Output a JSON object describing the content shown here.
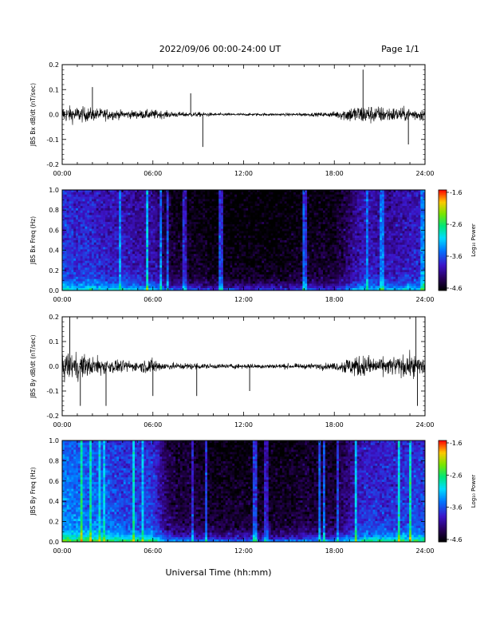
{
  "header": {
    "date_range": "2022/09/06  00:00-24:00 UT",
    "page_label": "Page 1/1"
  },
  "xlabel": "Universal Time (hh:mm)",
  "time_ticks": [
    "00:00",
    "06:00",
    "12:00",
    "18:00",
    "24:00"
  ],
  "chart_data": [
    {
      "type": "line",
      "panel": "bx_waveform",
      "ylabel": "JBS Bx dB/dt (nT/sec)",
      "xlim": [
        0,
        24
      ],
      "ylim": [
        -0.2,
        0.2
      ],
      "y_ticks": [
        "0.2",
        "0.1",
        "0.0",
        "-0.1",
        "-0.2"
      ],
      "activity_envelope": {
        "hours": [
          0,
          1,
          2,
          3,
          4,
          5,
          6,
          7,
          8,
          9,
          10,
          11,
          12,
          13,
          14,
          15,
          16,
          17,
          18,
          19,
          20,
          21,
          22,
          23,
          24
        ],
        "amplitude": [
          0.05,
          0.05,
          0.04,
          0.035,
          0.025,
          0.025,
          0.03,
          0.02,
          0.015,
          0.015,
          0.01,
          0.008,
          0.008,
          0.008,
          0.008,
          0.009,
          0.01,
          0.012,
          0.018,
          0.05,
          0.06,
          0.05,
          0.045,
          0.04,
          0.04
        ]
      },
      "spikes": [
        {
          "hour": 2.0,
          "value": 0.11
        },
        {
          "hour": 8.5,
          "value": 0.085
        },
        {
          "hour": 9.3,
          "value": -0.13
        },
        {
          "hour": 19.9,
          "value": 0.18
        },
        {
          "hour": 22.9,
          "value": -0.12
        }
      ]
    },
    {
      "type": "heatmap",
      "panel": "bx_spectrogram",
      "ylabel": "JBS Bx Freq (Hz)",
      "xlim": [
        0,
        24
      ],
      "ylim": [
        0.0,
        1.0
      ],
      "y_ticks": [
        "1.0",
        "0.8",
        "0.6",
        "0.4",
        "0.2",
        "0.0"
      ],
      "colorbar": {
        "label": "Log₁₀ Power",
        "ticks": [
          "-1.6",
          "-2.6",
          "-3.6",
          "-4.6"
        ],
        "range": [
          -4.6,
          -1.6
        ]
      },
      "hourly_mean_power": [
        -3.6,
        -3.7,
        -3.7,
        -3.8,
        -3.8,
        -3.9,
        -3.9,
        -4.3,
        -4.4,
        -4.4,
        -4.5,
        -4.5,
        -4.5,
        -4.5,
        -4.5,
        -4.5,
        -4.4,
        -4.4,
        -4.4,
        -4.1,
        -3.8,
        -3.9,
        -3.9,
        -3.8,
        -3.8
      ],
      "low_freq_enhancement": 0.9
    },
    {
      "type": "line",
      "panel": "by_waveform",
      "ylabel": "JBS By dB/dt (nT/sec)",
      "xlim": [
        0,
        24
      ],
      "ylim": [
        -0.2,
        0.2
      ],
      "y_ticks": [
        "0.2",
        "0.1",
        "0.0",
        "-0.1",
        "-0.2"
      ],
      "activity_envelope": {
        "hours": [
          0,
          1,
          2,
          3,
          4,
          5,
          6,
          7,
          8,
          9,
          10,
          11,
          12,
          13,
          14,
          15,
          16,
          17,
          18,
          19,
          20,
          21,
          22,
          23,
          24
        ],
        "amplitude": [
          0.09,
          0.08,
          0.06,
          0.05,
          0.035,
          0.03,
          0.05,
          0.02,
          0.02,
          0.02,
          0.015,
          0.015,
          0.015,
          0.015,
          0.015,
          0.015,
          0.015,
          0.02,
          0.02,
          0.06,
          0.07,
          0.05,
          0.06,
          0.07,
          0.06
        ]
      },
      "spikes": [
        {
          "hour": 0.5,
          "value": 0.2
        },
        {
          "hour": 1.2,
          "value": -0.16
        },
        {
          "hour": 2.9,
          "value": -0.16
        },
        {
          "hour": 6.0,
          "value": -0.12
        },
        {
          "hour": 8.9,
          "value": -0.12
        },
        {
          "hour": 12.4,
          "value": -0.1
        },
        {
          "hour": 23.4,
          "value": 0.2
        },
        {
          "hour": 23.5,
          "value": -0.16
        }
      ]
    },
    {
      "type": "heatmap",
      "panel": "by_spectrogram",
      "ylabel": "JBS By Freq (Hz)",
      "xlim": [
        0,
        24
      ],
      "ylim": [
        0.0,
        1.0
      ],
      "y_ticks": [
        "1.0",
        "0.8",
        "0.6",
        "0.4",
        "0.2",
        "0.0"
      ],
      "colorbar": {
        "label": "Log₁₀ Power",
        "ticks": [
          "-1.6",
          "-2.6",
          "-3.6",
          "-4.6"
        ],
        "range": [
          -4.6,
          -1.6
        ]
      },
      "hourly_mean_power": [
        -3.3,
        -3.4,
        -3.4,
        -3.5,
        -3.6,
        -3.6,
        -3.6,
        -4.2,
        -4.3,
        -4.3,
        -4.4,
        -4.4,
        -4.4,
        -4.4,
        -4.4,
        -4.4,
        -4.3,
        -4.3,
        -4.3,
        -4.0,
        -3.7,
        -3.7,
        -3.7,
        -3.6,
        -3.6
      ],
      "low_freq_enhancement": 1.1
    }
  ]
}
